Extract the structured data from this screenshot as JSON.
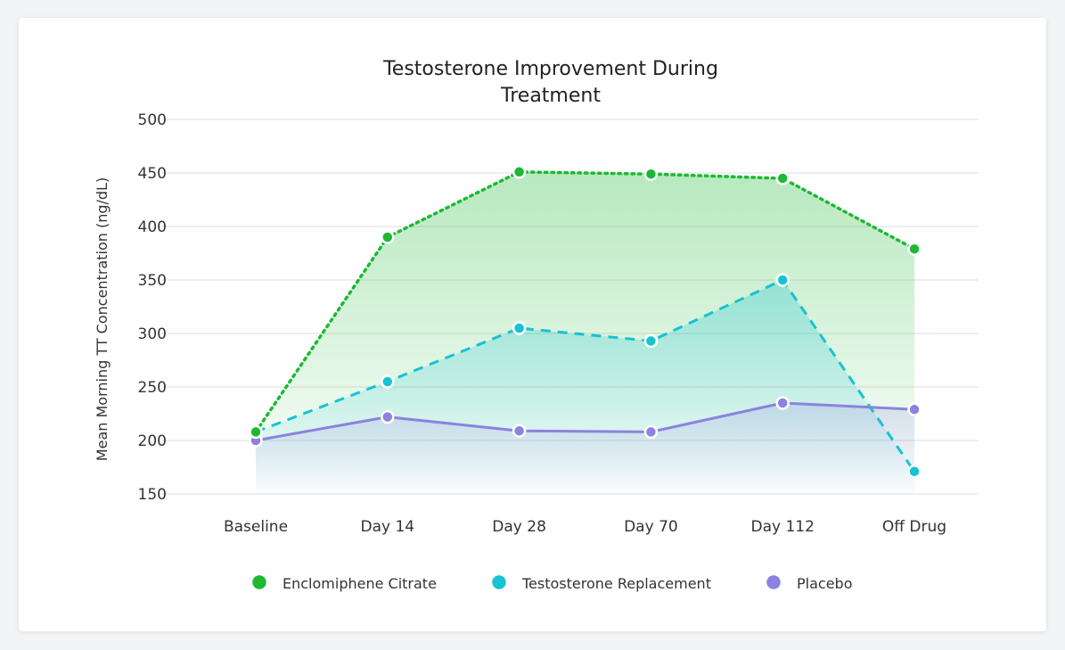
{
  "chart_data": {
    "type": "line",
    "title_lines": [
      "Testosterone Improvement During",
      "Treatment"
    ],
    "xlabel": "",
    "ylabel": "Mean Morning TT Concentration (ng/dL)",
    "categories": [
      "Baseline",
      "Day 14",
      "Day 28",
      "Day 70",
      "Day 112",
      "Off Drug"
    ],
    "ylim": [
      150,
      500
    ],
    "yticks": [
      500,
      450,
      400,
      350,
      300,
      250,
      200,
      150
    ],
    "grid": true,
    "legend_position": "bottom",
    "series": [
      {
        "name": "Enclomiphene Citrate",
        "color": "#1db934",
        "dash": "dotted",
        "values": [
          208,
          390,
          451,
          449,
          445,
          379
        ]
      },
      {
        "name": "Testosterone Replacement",
        "color": "#16c3d3",
        "dash": "dashed",
        "values": [
          208,
          255,
          305,
          293,
          350,
          171
        ]
      },
      {
        "name": "Placebo",
        "color": "#8c82e0",
        "dash": "solid",
        "values": [
          200,
          222,
          209,
          208,
          235,
          229
        ]
      }
    ]
  }
}
